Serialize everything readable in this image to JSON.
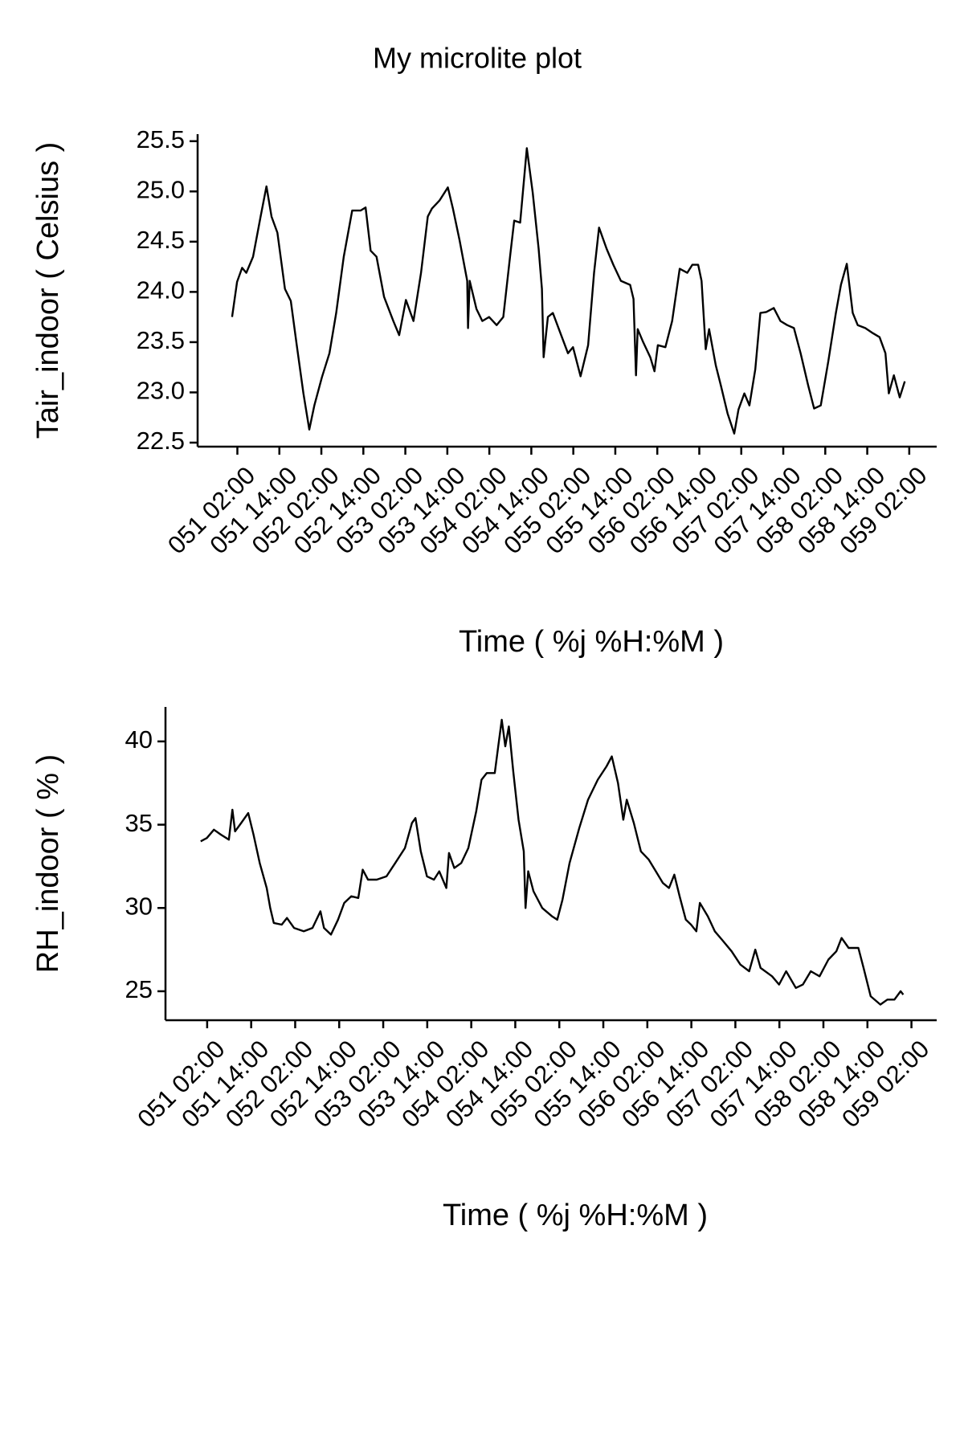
{
  "chart_data": [
    {
      "type": "line",
      "title": "My microlite plot",
      "xlabel": "Time ( %j %H:%M )",
      "ylabel": "Tair_indoor ( Celsius )",
      "color": "#000000",
      "x": [
        51.02,
        51.08,
        51.14,
        51.19,
        51.27,
        51.36,
        51.43,
        51.49,
        51.56,
        51.65,
        51.72,
        51.79,
        51.87,
        51.94,
        52.0,
        52.09,
        52.18,
        52.26,
        52.35,
        52.45,
        52.55,
        52.61,
        52.67,
        52.74,
        52.83,
        52.94,
        53.01,
        53.09,
        53.18,
        53.27,
        53.35,
        53.4,
        53.49,
        53.59,
        53.65,
        53.73,
        53.82,
        53.83,
        53.85,
        53.93,
        54.0,
        54.08,
        54.17,
        54.25,
        54.33,
        54.38,
        54.45,
        54.53,
        54.6,
        54.67,
        54.71,
        54.73,
        54.78,
        54.84,
        54.93,
        55.02,
        55.08,
        55.17,
        55.26,
        55.33,
        55.39,
        55.48,
        55.56,
        55.65,
        55.76,
        55.8,
        55.83,
        55.85,
        55.91,
        56.0,
        56.05,
        56.09,
        56.18,
        56.26,
        56.35,
        56.44,
        56.5,
        56.57,
        56.61,
        56.66,
        56.7,
        56.78,
        56.84,
        56.92,
        57.0,
        57.05,
        57.12,
        57.18,
        57.25,
        57.31,
        57.38,
        57.47,
        57.55,
        57.63,
        57.71,
        57.79,
        57.88,
        57.95,
        58.03,
        58.12,
        58.21,
        58.27,
        58.34,
        58.41,
        58.47,
        58.56,
        58.65,
        58.73,
        58.8,
        58.84,
        58.9,
        58.97,
        59.03
      ],
      "values": [
        23.75,
        24.1,
        24.24,
        24.19,
        24.35,
        24.75,
        25.05,
        24.75,
        24.59,
        24.03,
        23.91,
        23.47,
        22.99,
        22.63,
        22.87,
        23.15,
        23.39,
        23.79,
        24.35,
        24.81,
        24.81,
        24.84,
        24.41,
        24.35,
        23.95,
        23.71,
        23.57,
        23.92,
        23.71,
        24.19,
        24.75,
        24.83,
        24.91,
        25.04,
        24.83,
        24.51,
        24.11,
        23.64,
        24.11,
        23.83,
        23.71,
        23.75,
        23.67,
        23.75,
        24.35,
        24.71,
        24.69,
        25.43,
        24.99,
        24.43,
        24.03,
        23.35,
        23.75,
        23.79,
        23.59,
        23.39,
        23.45,
        23.16,
        23.47,
        24.19,
        24.64,
        24.43,
        24.27,
        24.11,
        24.07,
        23.93,
        23.17,
        23.63,
        23.51,
        23.35,
        23.21,
        23.47,
        23.45,
        23.71,
        24.23,
        24.19,
        24.27,
        24.27,
        24.11,
        23.43,
        23.63,
        23.27,
        23.07,
        22.79,
        22.59,
        22.83,
        22.99,
        22.87,
        23.23,
        23.79,
        23.8,
        23.84,
        23.71,
        23.67,
        23.64,
        23.39,
        23.07,
        22.84,
        22.87,
        23.31,
        23.79,
        24.07,
        24.28,
        23.79,
        23.67,
        23.64,
        23.59,
        23.55,
        23.39,
        22.99,
        23.17,
        22.95,
        23.11
      ],
      "xlim": [
        50.61,
        59.41
      ],
      "ylim": [
        22.46,
        25.57
      ],
      "xticks": [
        {
          "value": 51.0833,
          "label": "051 02:00"
        },
        {
          "value": 51.5833,
          "label": "051 14:00"
        },
        {
          "value": 52.0833,
          "label": "052 02:00"
        },
        {
          "value": 52.5833,
          "label": "052 14:00"
        },
        {
          "value": 53.0833,
          "label": "053 02:00"
        },
        {
          "value": 53.5833,
          "label": "053 14:00"
        },
        {
          "value": 54.0833,
          "label": "054 02:00"
        },
        {
          "value": 54.5833,
          "label": "054 14:00"
        },
        {
          "value": 55.0833,
          "label": "055 02:00"
        },
        {
          "value": 55.5833,
          "label": "055 14:00"
        },
        {
          "value": 56.0833,
          "label": "056 02:00"
        },
        {
          "value": 56.5833,
          "label": "056 14:00"
        },
        {
          "value": 57.0833,
          "label": "057 02:00"
        },
        {
          "value": 57.5833,
          "label": "057 14:00"
        },
        {
          "value": 58.0833,
          "label": "058 02:00"
        },
        {
          "value": 58.5833,
          "label": "058 14:00"
        },
        {
          "value": 59.0833,
          "label": "059 02:00"
        }
      ],
      "yticks": [
        {
          "value": 22.5,
          "label": "22.5"
        },
        {
          "value": 23,
          "label": "23.0"
        },
        {
          "value": 23.5,
          "label": "23.5"
        },
        {
          "value": 24,
          "label": "24.0"
        },
        {
          "value": 24.5,
          "label": "24.5"
        },
        {
          "value": 25,
          "label": "25.0"
        },
        {
          "value": 25.5,
          "label": "25.5"
        }
      ]
    },
    {
      "type": "line",
      "xlabel": "Time ( %j %H:%M )",
      "ylabel": "RH_indoor ( % )",
      "color": "#000000",
      "x": [
        51.01,
        51.08,
        51.16,
        51.24,
        51.33,
        51.37,
        51.4,
        51.47,
        51.55,
        51.61,
        51.68,
        51.76,
        51.8,
        51.84,
        51.93,
        51.99,
        52.07,
        52.18,
        52.28,
        52.37,
        52.41,
        52.49,
        52.57,
        52.64,
        52.72,
        52.8,
        52.85,
        52.91,
        53.01,
        53.12,
        53.22,
        53.33,
        53.41,
        53.45,
        53.51,
        53.58,
        53.66,
        53.72,
        53.8,
        53.83,
        53.89,
        53.97,
        54.05,
        54.14,
        54.2,
        54.26,
        54.35,
        54.39,
        54.43,
        54.47,
        54.51,
        54.56,
        54.62,
        54.68,
        54.7,
        54.73,
        54.79,
        54.89,
        55.0,
        55.06,
        55.12,
        55.2,
        55.31,
        55.41,
        55.52,
        55.62,
        55.68,
        55.75,
        55.81,
        55.85,
        55.93,
        56.01,
        56.1,
        56.18,
        56.26,
        56.33,
        56.39,
        56.45,
        56.52,
        56.58,
        56.64,
        56.68,
        56.77,
        56.85,
        56.93,
        57.04,
        57.14,
        57.24,
        57.31,
        57.37,
        57.5,
        57.58,
        57.66,
        57.77,
        57.85,
        57.94,
        58.04,
        58.14,
        58.23,
        58.29,
        58.37,
        58.48,
        58.54,
        58.62,
        58.73,
        58.81,
        58.89,
        58.96,
        58.99
      ],
      "values": [
        34.0,
        34.2,
        34.7,
        34.4,
        34.1,
        35.9,
        34.6,
        35.1,
        35.7,
        34.4,
        32.7,
        31.2,
        30.0,
        29.1,
        29.0,
        29.4,
        28.8,
        28.6,
        28.8,
        29.8,
        28.8,
        28.4,
        29.3,
        30.3,
        30.7,
        30.6,
        32.3,
        31.7,
        31.7,
        31.9,
        32.7,
        33.6,
        35.1,
        35.4,
        33.4,
        31.9,
        31.7,
        32.2,
        31.2,
        33.3,
        32.4,
        32.7,
        33.6,
        35.8,
        37.7,
        38.1,
        38.1,
        39.7,
        41.3,
        39.7,
        40.9,
        38.2,
        35.3,
        33.4,
        30.0,
        32.2,
        31.0,
        30.0,
        29.5,
        29.3,
        30.5,
        32.7,
        34.8,
        36.5,
        37.7,
        38.5,
        39.1,
        37.5,
        35.3,
        36.5,
        35.1,
        33.4,
        32.9,
        32.2,
        31.5,
        31.2,
        32.0,
        30.7,
        29.3,
        29.0,
        28.6,
        30.3,
        29.5,
        28.6,
        28.1,
        27.4,
        26.6,
        26.2,
        27.5,
        26.4,
        25.9,
        25.4,
        26.2,
        25.2,
        25.4,
        26.2,
        25.9,
        26.9,
        27.4,
        28.2,
        27.6,
        27.6,
        26.4,
        24.7,
        24.2,
        24.5,
        24.5,
        25.0,
        24.8
      ],
      "xlim": [
        50.61,
        59.37
      ],
      "ylim": [
        23.26,
        42.07
      ],
      "xticks": [
        {
          "value": 51.0833,
          "label": "051 02:00"
        },
        {
          "value": 51.5833,
          "label": "051 14:00"
        },
        {
          "value": 52.0833,
          "label": "052 02:00"
        },
        {
          "value": 52.5833,
          "label": "052 14:00"
        },
        {
          "value": 53.0833,
          "label": "053 02:00"
        },
        {
          "value": 53.5833,
          "label": "053 14:00"
        },
        {
          "value": 54.0833,
          "label": "054 02:00"
        },
        {
          "value": 54.5833,
          "label": "054 14:00"
        },
        {
          "value": 55.0833,
          "label": "055 02:00"
        },
        {
          "value": 55.5833,
          "label": "055 14:00"
        },
        {
          "value": 56.0833,
          "label": "056 02:00"
        },
        {
          "value": 56.5833,
          "label": "056 14:00"
        },
        {
          "value": 57.0833,
          "label": "057 02:00"
        },
        {
          "value": 57.5833,
          "label": "057 14:00"
        },
        {
          "value": 58.0833,
          "label": "058 02:00"
        },
        {
          "value": 58.5833,
          "label": "058 14:00"
        },
        {
          "value": 59.0833,
          "label": "059 02:00"
        }
      ],
      "yticks": [
        25,
        30,
        35,
        40
      ]
    }
  ]
}
